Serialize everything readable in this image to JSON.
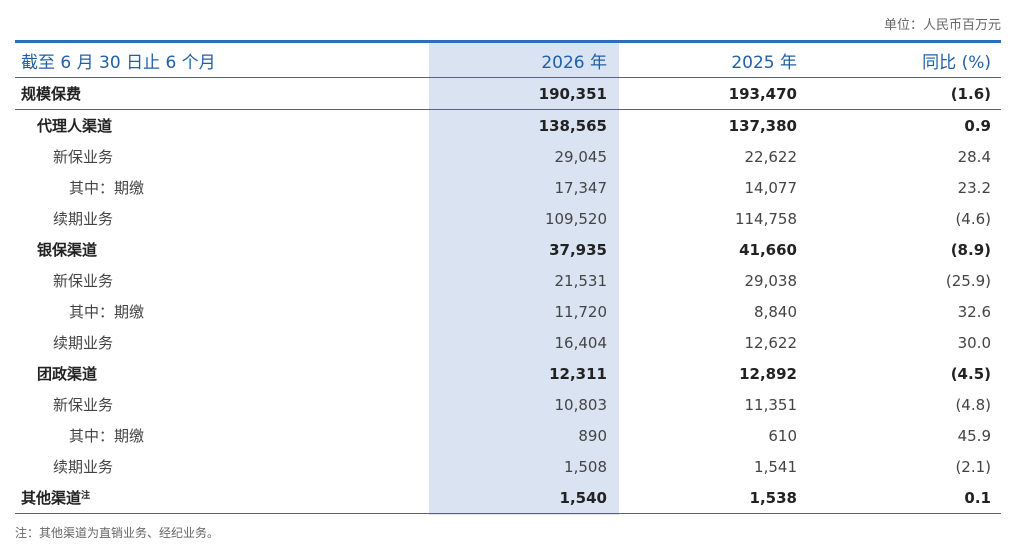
{
  "unit_label": "单位：人民币百万元",
  "header": {
    "period": "截至 6 月 30 日止 6 个月",
    "col_2026": "2026 年",
    "col_2025": "2025 年",
    "col_yoy": "同比 (%)"
  },
  "rows": [
    {
      "label": "规模保费",
      "v2026": "190,351",
      "v2025": "193,470",
      "yoy": "(1.6)"
    },
    {
      "label": "代理人渠道",
      "v2026": "138,565",
      "v2025": "137,380",
      "yoy": "0.9"
    },
    {
      "label": "新保业务",
      "v2026": "29,045",
      "v2025": "22,622",
      "yoy": "28.4"
    },
    {
      "label": "其中：期缴",
      "v2026": "17,347",
      "v2025": "14,077",
      "yoy": "23.2"
    },
    {
      "label": "续期业务",
      "v2026": "109,520",
      "v2025": "114,758",
      "yoy": "(4.6)"
    },
    {
      "label": "银保渠道",
      "v2026": "37,935",
      "v2025": "41,660",
      "yoy": "(8.9)"
    },
    {
      "label": "新保业务",
      "v2026": "21,531",
      "v2025": "29,038",
      "yoy": "(25.9)"
    },
    {
      "label": "其中：期缴",
      "v2026": "11,720",
      "v2025": "8,840",
      "yoy": "32.6"
    },
    {
      "label": "续期业务",
      "v2026": "16,404",
      "v2025": "12,622",
      "yoy": "30.0"
    },
    {
      "label": "团政渠道",
      "v2026": "12,311",
      "v2025": "12,892",
      "yoy": "(4.5)"
    },
    {
      "label": "新保业务",
      "v2026": "10,803",
      "v2025": "11,351",
      "yoy": "(4.8)"
    },
    {
      "label": "其中：期缴",
      "v2026": "890",
      "v2025": "610",
      "yoy": "45.9"
    },
    {
      "label": "续期业务",
      "v2026": "1,508",
      "v2025": "1,541",
      "yoy": "(2.1)"
    },
    {
      "label": "其他渠道",
      "note_mark": "注",
      "v2026": "1,540",
      "v2025": "1,538",
      "yoy": "0.1"
    }
  ],
  "footnote": "注：其他渠道为直销业务、经纪业务。"
}
